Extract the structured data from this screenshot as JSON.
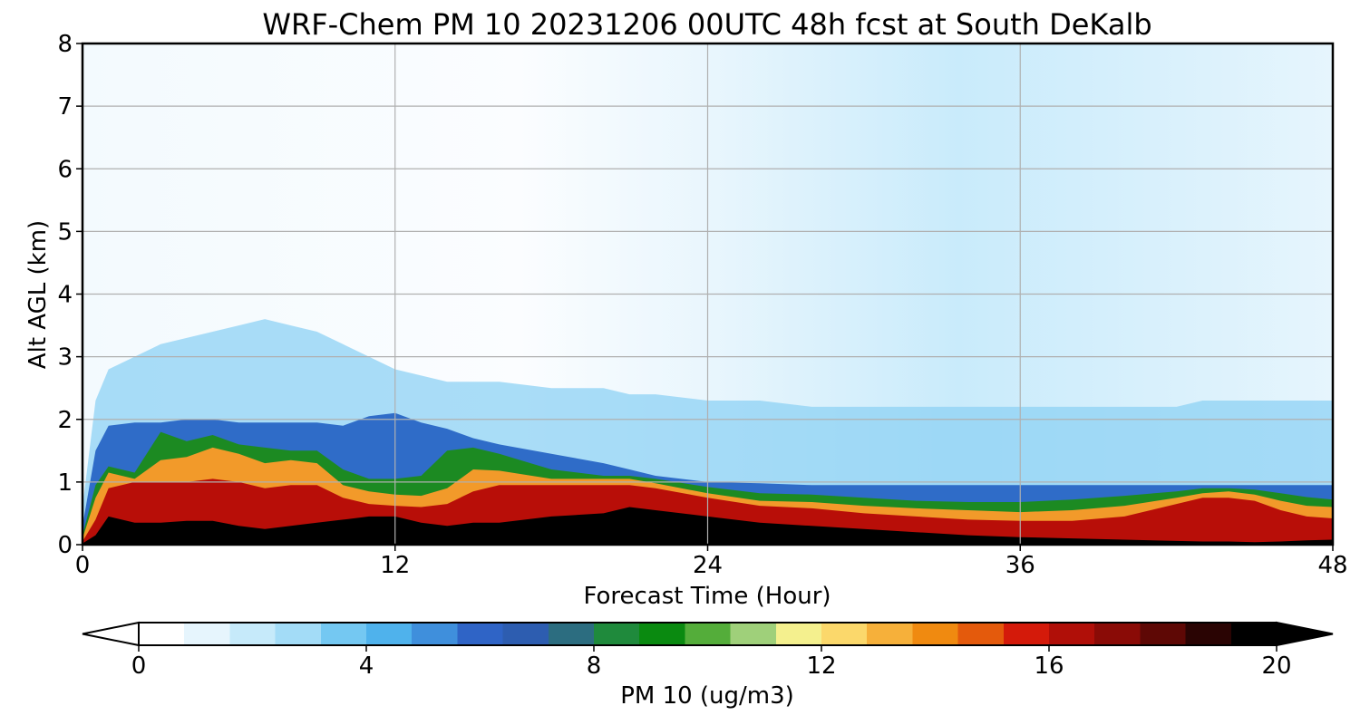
{
  "chart_data": {
    "type": "heatmap",
    "title": "WRF-Chem PM 10  20231206 00UTC 48h fcst at South DeKalb",
    "xlabel": "Forecast Time (Hour)",
    "ylabel": "Alt AGL (km)",
    "xlim": [
      0,
      48
    ],
    "ylim": [
      0,
      8
    ],
    "x_ticks": [
      "0",
      "12",
      "24",
      "36",
      "48"
    ],
    "y_ticks": [
      "0",
      "1",
      "2",
      "3",
      "4",
      "5",
      "6",
      "7",
      "8"
    ],
    "grid": true,
    "colorbar": {
      "label": "PM 10  (ug/m3)",
      "orientation": "horizontal",
      "placement": "bottom",
      "min": 0,
      "max": 20,
      "ticks": [
        "0",
        "4",
        "8",
        "12",
        "16",
        "20"
      ],
      "extend": "both",
      "colors": [
        "#ffffff",
        "#e6f5fd",
        "#c6eafa",
        "#a3dcf7",
        "#74c8f2",
        "#4fb2ec",
        "#3f8fdc",
        "#2f64c6",
        "#2d5db0",
        "#2c6d80",
        "#1f8a3c",
        "#0a8a10",
        "#54ad3a",
        "#9fd07a",
        "#f4f08e",
        "#fbd86b",
        "#f6b03a",
        "#f08a10",
        "#e45a0c",
        "#d41a0a",
        "#b00f08",
        "#8a0b06",
        "#5e0805",
        "#2a0403",
        "#000000"
      ]
    },
    "x": [
      0,
      0.5,
      1,
      2,
      3,
      4,
      5,
      6,
      7,
      8,
      9,
      10,
      11,
      12,
      13,
      14,
      15,
      16,
      18,
      20,
      21,
      22,
      24,
      26,
      28,
      30,
      32,
      34,
      36,
      38,
      40,
      42,
      43,
      44,
      45,
      46,
      47,
      48
    ],
    "layers": {
      "upper_limit_black_km": [
        0.02,
        0.15,
        0.45,
        0.35,
        0.35,
        0.38,
        0.38,
        0.3,
        0.25,
        0.3,
        0.35,
        0.4,
        0.45,
        0.45,
        0.35,
        0.3,
        0.35,
        0.35,
        0.45,
        0.5,
        0.6,
        0.55,
        0.45,
        0.35,
        0.3,
        0.25,
        0.2,
        0.15,
        0.12,
        0.1,
        0.08,
        0.06,
        0.05,
        0.05,
        0.04,
        0.05,
        0.07,
        0.08
      ],
      "upper_limit_red_km": [
        0.05,
        0.4,
        0.9,
        1.0,
        1.0,
        1.0,
        1.05,
        1.0,
        0.9,
        0.95,
        0.95,
        0.75,
        0.65,
        0.62,
        0.6,
        0.65,
        0.85,
        0.95,
        0.95,
        0.95,
        0.95,
        0.9,
        0.75,
        0.62,
        0.58,
        0.5,
        0.45,
        0.4,
        0.38,
        0.38,
        0.45,
        0.65,
        0.75,
        0.75,
        0.7,
        0.55,
        0.45,
        0.42
      ],
      "upper_limit_orange_yellow_km": [
        0.1,
        0.75,
        1.15,
        1.05,
        1.35,
        1.4,
        1.55,
        1.45,
        1.3,
        1.35,
        1.3,
        0.95,
        0.85,
        0.8,
        0.78,
        0.9,
        1.2,
        1.18,
        1.05,
        1.05,
        1.05,
        0.98,
        0.82,
        0.7,
        0.68,
        0.62,
        0.58,
        0.55,
        0.52,
        0.55,
        0.62,
        0.75,
        0.82,
        0.85,
        0.8,
        0.7,
        0.62,
        0.6
      ],
      "upper_limit_green_km": [
        0.15,
        0.95,
        1.25,
        1.15,
        1.8,
        1.65,
        1.75,
        1.6,
        1.55,
        1.5,
        1.5,
        1.2,
        1.05,
        1.05,
        1.1,
        1.5,
        1.55,
        1.45,
        1.2,
        1.1,
        1.1,
        1.05,
        0.92,
        0.82,
        0.8,
        0.75,
        0.7,
        0.68,
        0.68,
        0.72,
        0.78,
        0.85,
        0.9,
        0.9,
        0.88,
        0.82,
        0.76,
        0.72
      ],
      "upper_limit_blue_km": [
        0.3,
        1.5,
        1.9,
        1.95,
        1.95,
        2.0,
        2.0,
        1.95,
        1.95,
        1.95,
        1.95,
        1.9,
        2.05,
        2.1,
        1.95,
        1.85,
        1.7,
        1.6,
        1.45,
        1.3,
        1.2,
        1.1,
        1.0,
        0.98,
        0.95,
        0.95,
        0.95,
        0.95,
        0.95,
        0.95,
        0.95,
        0.95,
        0.95,
        0.95,
        0.95,
        0.95,
        0.95,
        0.95
      ],
      "upper_limit_lightblue_km": [
        0.6,
        2.3,
        2.8,
        3.0,
        3.2,
        3.3,
        3.4,
        3.5,
        3.6,
        3.5,
        3.4,
        3.2,
        3.0,
        2.8,
        2.7,
        2.6,
        2.6,
        2.6,
        2.5,
        2.5,
        2.4,
        2.4,
        2.3,
        2.3,
        2.2,
        2.2,
        2.2,
        2.2,
        2.2,
        2.2,
        2.2,
        2.2,
        2.3,
        2.3,
        2.3,
        2.3,
        2.3,
        2.3
      ]
    },
    "layer_colors": {
      "black": "#000000",
      "red": "#b80e08",
      "orange_yellow": "#f29a2a",
      "green": "#1c8a22",
      "blue": "#2f6cc8",
      "lightblue": "#8dd2f4",
      "upper_background": "#e8f6fd"
    }
  }
}
